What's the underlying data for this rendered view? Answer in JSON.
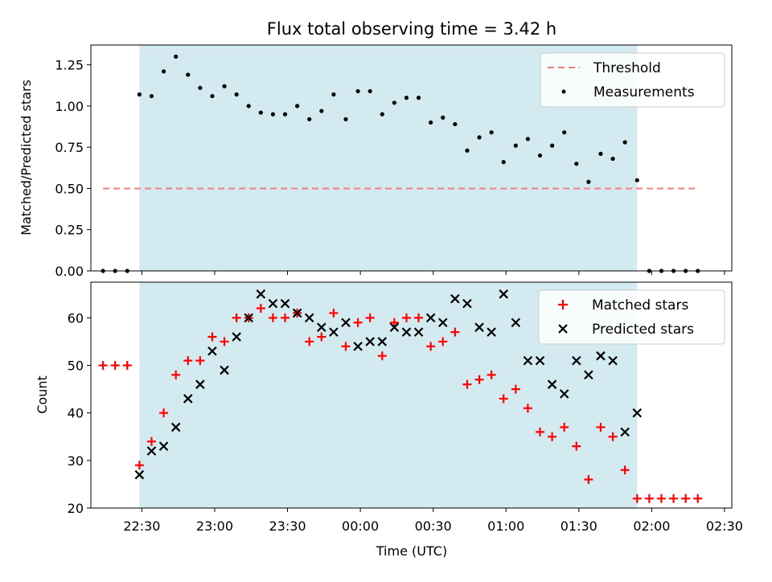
{
  "chart_data": [
    {
      "type": "scatter",
      "title": "Flux total observing time = 3.42 h",
      "ylabel": "Matched/Predicted stars",
      "xlabel": "",
      "ylim": [
        0,
        1.37
      ],
      "yticks": [
        "0.00",
        "0.25",
        "0.50",
        "0.75",
        "1.00",
        "1.25"
      ],
      "ytick_values": [
        0,
        0.25,
        0.5,
        0.75,
        1.0,
        1.25
      ],
      "observing_window": [
        "22:29",
        "01:54"
      ],
      "threshold": {
        "name": "Threshold",
        "value": 0.5,
        "x_range": [
          "22:14",
          "02:19"
        ],
        "color": "#f08080"
      },
      "legend_position": "top-right",
      "series": [
        {
          "name": "Measurements",
          "marker": "dot",
          "color": "#000000",
          "points": [
            [
              "22:14",
              0.0
            ],
            [
              "22:19",
              0.0
            ],
            [
              "22:24",
              0.0
            ],
            [
              "22:29",
              1.07
            ],
            [
              "22:34",
              1.06
            ],
            [
              "22:39",
              1.21
            ],
            [
              "22:44",
              1.3
            ],
            [
              "22:49",
              1.19
            ],
            [
              "22:54",
              1.11
            ],
            [
              "22:59",
              1.06
            ],
            [
              "23:04",
              1.12
            ],
            [
              "23:09",
              1.07
            ],
            [
              "23:14",
              1.0
            ],
            [
              "23:19",
              0.96
            ],
            [
              "23:24",
              0.95
            ],
            [
              "23:29",
              0.95
            ],
            [
              "23:34",
              1.0
            ],
            [
              "23:39",
              0.92
            ],
            [
              "23:44",
              0.97
            ],
            [
              "23:49",
              1.07
            ],
            [
              "23:54",
              0.92
            ],
            [
              "23:59",
              1.09
            ],
            [
              "00:04",
              1.09
            ],
            [
              "00:09",
              0.95
            ],
            [
              "00:14",
              1.02
            ],
            [
              "00:19",
              1.05
            ],
            [
              "00:24",
              1.05
            ],
            [
              "00:29",
              0.9
            ],
            [
              "00:34",
              0.93
            ],
            [
              "00:39",
              0.89
            ],
            [
              "00:44",
              0.73
            ],
            [
              "00:49",
              0.81
            ],
            [
              "00:54",
              0.84
            ],
            [
              "00:59",
              0.66
            ],
            [
              "01:04",
              0.76
            ],
            [
              "01:09",
              0.8
            ],
            [
              "01:14",
              0.7
            ],
            [
              "01:19",
              0.76
            ],
            [
              "01:24",
              0.84
            ],
            [
              "01:29",
              0.65
            ],
            [
              "01:34",
              0.54
            ],
            [
              "01:39",
              0.71
            ],
            [
              "01:44",
              0.68
            ],
            [
              "01:49",
              0.78
            ],
            [
              "01:54",
              0.55
            ],
            [
              "01:59",
              0.0
            ],
            [
              "02:04",
              0.0
            ],
            [
              "02:09",
              0.0
            ],
            [
              "02:14",
              0.0
            ],
            [
              "02:19",
              0.0
            ]
          ]
        }
      ]
    },
    {
      "type": "scatter",
      "title": "",
      "ylabel": "Count",
      "xlabel": "Time (UTC)",
      "ylim": [
        20,
        67.5
      ],
      "yticks": [
        "20",
        "30",
        "40",
        "50",
        "60"
      ],
      "ytick_values": [
        20,
        30,
        40,
        50,
        60
      ],
      "xlim": [
        "22:09",
        "02:33"
      ],
      "xticks": [
        "22:30",
        "23:00",
        "23:30",
        "00:00",
        "00:30",
        "01:00",
        "01:30",
        "02:00",
        "02:30"
      ],
      "observing_window": [
        "22:29",
        "01:54"
      ],
      "legend_position": "top-right",
      "series": [
        {
          "name": "Matched stars",
          "marker": "plus",
          "color": "#ff0000",
          "points": [
            [
              "22:14",
              50
            ],
            [
              "22:19",
              50
            ],
            [
              "22:24",
              50
            ],
            [
              "22:29",
              29
            ],
            [
              "22:34",
              34
            ],
            [
              "22:39",
              40
            ],
            [
              "22:44",
              48
            ],
            [
              "22:49",
              51
            ],
            [
              "22:54",
              51
            ],
            [
              "22:59",
              56
            ],
            [
              "23:04",
              55
            ],
            [
              "23:09",
              60
            ],
            [
              "23:14",
              60
            ],
            [
              "23:19",
              62
            ],
            [
              "23:24",
              60
            ],
            [
              "23:29",
              60
            ],
            [
              "23:34",
              61
            ],
            [
              "23:39",
              55
            ],
            [
              "23:44",
              56
            ],
            [
              "23:49",
              61
            ],
            [
              "23:54",
              54
            ],
            [
              "23:59",
              59
            ],
            [
              "00:04",
              60
            ],
            [
              "00:09",
              52
            ],
            [
              "00:14",
              59
            ],
            [
              "00:19",
              60
            ],
            [
              "00:24",
              60
            ],
            [
              "00:29",
              54
            ],
            [
              "00:34",
              55
            ],
            [
              "00:39",
              57
            ],
            [
              "00:44",
              46
            ],
            [
              "00:49",
              47
            ],
            [
              "00:54",
              48
            ],
            [
              "00:59",
              43
            ],
            [
              "01:04",
              45
            ],
            [
              "01:09",
              41
            ],
            [
              "01:14",
              36
            ],
            [
              "01:19",
              35
            ],
            [
              "01:24",
              37
            ],
            [
              "01:29",
              33
            ],
            [
              "01:34",
              26
            ],
            [
              "01:39",
              37
            ],
            [
              "01:44",
              35
            ],
            [
              "01:49",
              28
            ],
            [
              "01:54",
              22
            ],
            [
              "01:59",
              22
            ],
            [
              "02:04",
              22
            ],
            [
              "02:09",
              22
            ],
            [
              "02:14",
              22
            ],
            [
              "02:19",
              22
            ]
          ]
        },
        {
          "name": "Predicted stars",
          "marker": "x",
          "color": "#000000",
          "points": [
            [
              "22:29",
              27
            ],
            [
              "22:34",
              32
            ],
            [
              "22:39",
              33
            ],
            [
              "22:44",
              37
            ],
            [
              "22:49",
              43
            ],
            [
              "22:54",
              46
            ],
            [
              "22:59",
              53
            ],
            [
              "23:04",
              49
            ],
            [
              "23:09",
              56
            ],
            [
              "23:14",
              60
            ],
            [
              "23:19",
              65
            ],
            [
              "23:24",
              63
            ],
            [
              "23:29",
              63
            ],
            [
              "23:34",
              61
            ],
            [
              "23:39",
              60
            ],
            [
              "23:44",
              58
            ],
            [
              "23:49",
              57
            ],
            [
              "23:54",
              59
            ],
            [
              "23:59",
              54
            ],
            [
              "00:04",
              55
            ],
            [
              "00:09",
              55
            ],
            [
              "00:14",
              58
            ],
            [
              "00:19",
              57
            ],
            [
              "00:24",
              57
            ],
            [
              "00:29",
              60
            ],
            [
              "00:34",
              59
            ],
            [
              "00:39",
              64
            ],
            [
              "00:44",
              63
            ],
            [
              "00:49",
              58
            ],
            [
              "00:54",
              57
            ],
            [
              "00:59",
              65
            ],
            [
              "01:04",
              59
            ],
            [
              "01:09",
              51
            ],
            [
              "01:14",
              51
            ],
            [
              "01:19",
              46
            ],
            [
              "01:24",
              44
            ],
            [
              "01:29",
              51
            ],
            [
              "01:34",
              48
            ],
            [
              "01:39",
              52
            ],
            [
              "01:44",
              51
            ],
            [
              "01:49",
              36
            ],
            [
              "01:54",
              40
            ]
          ]
        }
      ]
    }
  ],
  "colors": {
    "window": "#d3eaf0",
    "axis": "#000000"
  }
}
